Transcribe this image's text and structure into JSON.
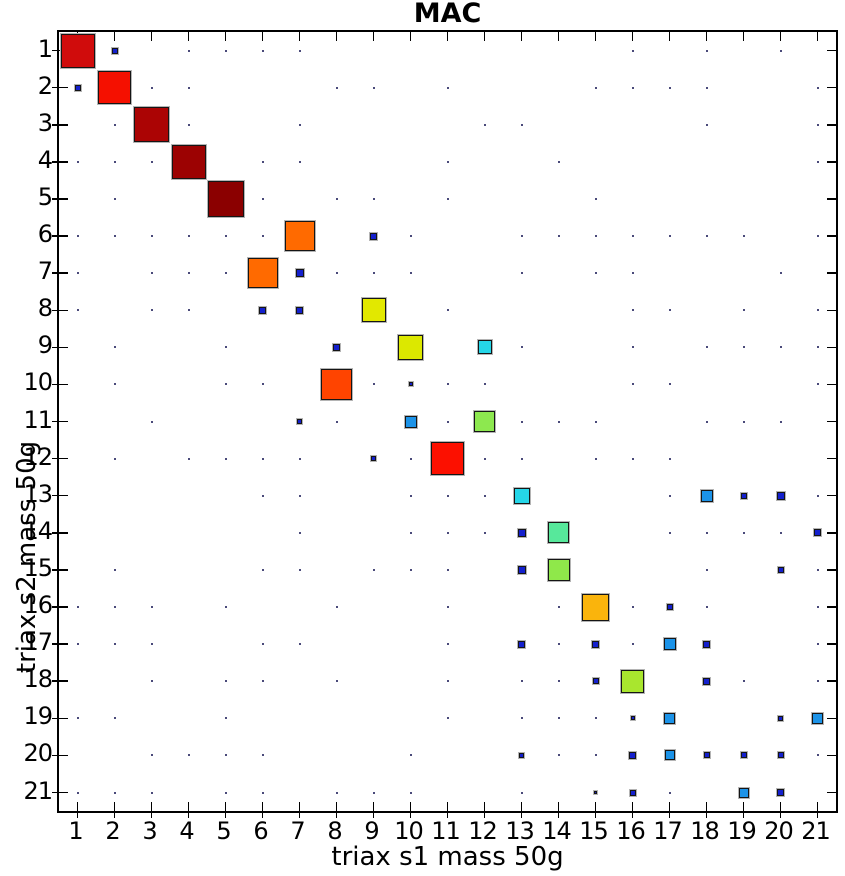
{
  "chart_data": {
    "type": "scatter",
    "subtype": "mac-matrix-bubble",
    "title": "MAC",
    "xlabel": "triax s1 mass 50g",
    "ylabel": "triax s2 mass 50g",
    "x_ticks": [
      1,
      2,
      3,
      4,
      5,
      6,
      7,
      8,
      9,
      10,
      11,
      12,
      13,
      14,
      15,
      16,
      17,
      18,
      19,
      20,
      21
    ],
    "y_ticks": [
      1,
      2,
      3,
      4,
      5,
      6,
      7,
      8,
      9,
      10,
      11,
      12,
      13,
      14,
      15,
      16,
      17,
      18,
      19,
      20,
      21
    ],
    "x_range": [
      0.5,
      21.5
    ],
    "y_range": [
      0.5,
      21.5
    ],
    "y_axis_direction": "reversed-top-to-bottom",
    "grid": false,
    "legend": "none",
    "encoding": "square size and jet color encode MAC value at (s1 mode, s2 mode)",
    "markers": [
      {
        "x": 1,
        "y": 1,
        "size": 34,
        "color": "#d00c0c"
      },
      {
        "x": 2,
        "y": 1,
        "size": 6,
        "color": "#1420cd"
      },
      {
        "x": 1,
        "y": 2,
        "size": 6,
        "color": "#1420cd"
      },
      {
        "x": 2,
        "y": 2,
        "size": 33,
        "color": "#f51000"
      },
      {
        "x": 3,
        "y": 3,
        "size": 35,
        "color": "#ab0404"
      },
      {
        "x": 4,
        "y": 4,
        "size": 34,
        "color": "#9c0202"
      },
      {
        "x": 5,
        "y": 5,
        "size": 36,
        "color": "#8b0000"
      },
      {
        "x": 7,
        "y": 6,
        "size": 30,
        "color": "#ff6a00"
      },
      {
        "x": 9,
        "y": 6,
        "size": 7,
        "color": "#1420cd"
      },
      {
        "x": 6,
        "y": 7,
        "size": 30,
        "color": "#ff6a00"
      },
      {
        "x": 7,
        "y": 7,
        "size": 8,
        "color": "#1420cd"
      },
      {
        "x": 6,
        "y": 8,
        "size": 7,
        "color": "#1420cd"
      },
      {
        "x": 7,
        "y": 8,
        "size": 7,
        "color": "#1420cd"
      },
      {
        "x": 9,
        "y": 8,
        "size": 24,
        "color": "#e2e800"
      },
      {
        "x": 8,
        "y": 9,
        "size": 7,
        "color": "#1420cd"
      },
      {
        "x": 10,
        "y": 9,
        "size": 25,
        "color": "#dce800"
      },
      {
        "x": 12,
        "y": 9,
        "size": 14,
        "color": "#25d6e8"
      },
      {
        "x": 8,
        "y": 10,
        "size": 31,
        "color": "#ff4400"
      },
      {
        "x": 10,
        "y": 10,
        "size": 4,
        "color": "#1420cd"
      },
      {
        "x": 7,
        "y": 11,
        "size": 5,
        "color": "#1420cd"
      },
      {
        "x": 10,
        "y": 11,
        "size": 12,
        "color": "#1c93e8"
      },
      {
        "x": 12,
        "y": 11,
        "size": 21,
        "color": "#8de84f"
      },
      {
        "x": 9,
        "y": 12,
        "size": 5,
        "color": "#1420cd"
      },
      {
        "x": 11,
        "y": 12,
        "size": 33,
        "color": "#fc1000"
      },
      {
        "x": 13,
        "y": 13,
        "size": 16,
        "color": "#25d6e8"
      },
      {
        "x": 18,
        "y": 13,
        "size": 12,
        "color": "#1c93e8"
      },
      {
        "x": 19,
        "y": 13,
        "size": 6,
        "color": "#1420cd"
      },
      {
        "x": 20,
        "y": 13,
        "size": 8,
        "color": "#1420cd"
      },
      {
        "x": 13,
        "y": 14,
        "size": 8,
        "color": "#1420cd"
      },
      {
        "x": 14,
        "y": 14,
        "size": 21,
        "color": "#57e89b"
      },
      {
        "x": 21,
        "y": 14,
        "size": 7,
        "color": "#1420cd"
      },
      {
        "x": 13,
        "y": 15,
        "size": 8,
        "color": "#1420cd"
      },
      {
        "x": 14,
        "y": 15,
        "size": 22,
        "color": "#8fe84a"
      },
      {
        "x": 20,
        "y": 15,
        "size": 6,
        "color": "#1420cd"
      },
      {
        "x": 15,
        "y": 16,
        "size": 27,
        "color": "#fab40c"
      },
      {
        "x": 17,
        "y": 16,
        "size": 6,
        "color": "#1420cd"
      },
      {
        "x": 13,
        "y": 17,
        "size": 7,
        "color": "#1420cd"
      },
      {
        "x": 15,
        "y": 17,
        "size": 7,
        "color": "#1420cd"
      },
      {
        "x": 17,
        "y": 17,
        "size": 12,
        "color": "#1c93e8"
      },
      {
        "x": 18,
        "y": 17,
        "size": 7,
        "color": "#1420cd"
      },
      {
        "x": 15,
        "y": 18,
        "size": 6,
        "color": "#1420cd"
      },
      {
        "x": 16,
        "y": 18,
        "size": 23,
        "color": "#a9e62e"
      },
      {
        "x": 18,
        "y": 18,
        "size": 7,
        "color": "#1420cd"
      },
      {
        "x": 16,
        "y": 19,
        "size": 4,
        "color": "#1420cd"
      },
      {
        "x": 17,
        "y": 19,
        "size": 11,
        "color": "#1c93e8"
      },
      {
        "x": 20,
        "y": 19,
        "size": 5,
        "color": "#1420cd"
      },
      {
        "x": 21,
        "y": 19,
        "size": 11,
        "color": "#1c93e8"
      },
      {
        "x": 13,
        "y": 20,
        "size": 5,
        "color": "#1420cd"
      },
      {
        "x": 16,
        "y": 20,
        "size": 7,
        "color": "#1420cd"
      },
      {
        "x": 17,
        "y": 20,
        "size": 10,
        "color": "#1c93e8"
      },
      {
        "x": 18,
        "y": 20,
        "size": 6,
        "color": "#1420cd"
      },
      {
        "x": 19,
        "y": 20,
        "size": 6,
        "color": "#1420cd"
      },
      {
        "x": 20,
        "y": 20,
        "size": 6,
        "color": "#1420cd"
      },
      {
        "x": 15,
        "y": 21,
        "size": 3,
        "color": "#1420cd"
      },
      {
        "x": 16,
        "y": 21,
        "size": 6,
        "color": "#1420cd"
      },
      {
        "x": 19,
        "y": 21,
        "size": 10,
        "color": "#1c93e8"
      },
      {
        "x": 20,
        "y": 21,
        "size": 7,
        "color": "#1420cd"
      }
    ],
    "near_zero_dots": [
      {
        "row": 1,
        "cols": [
          4,
          5,
          6,
          7,
          16,
          18,
          20
        ]
      },
      {
        "row": 2,
        "cols": [
          3,
          4,
          8,
          9,
          11,
          15,
          16,
          17,
          18,
          21
        ]
      },
      {
        "row": 3,
        "cols": [
          2,
          4,
          7,
          12,
          13,
          18,
          21
        ]
      },
      {
        "row": 4,
        "cols": [
          1,
          2,
          3,
          6,
          7,
          11,
          14,
          21
        ]
      },
      {
        "row": 5,
        "cols": [
          2,
          6,
          8,
          9,
          11,
          15
        ]
      },
      {
        "row": 6,
        "cols": [
          1,
          2,
          3,
          4,
          5,
          6,
          10,
          13,
          14,
          15,
          16,
          17,
          18,
          19,
          21
        ]
      },
      {
        "row": 7,
        "cols": [
          1,
          3,
          4,
          5,
          8,
          9,
          10,
          13,
          15,
          16,
          20
        ]
      },
      {
        "row": 8,
        "cols": [
          1,
          3,
          4,
          11,
          16,
          17,
          19,
          21
        ]
      },
      {
        "row": 9,
        "cols": [
          2,
          5,
          13,
          16,
          18,
          19,
          20,
          21
        ]
      },
      {
        "row": 10,
        "cols": [
          2,
          5,
          6,
          9,
          11,
          12,
          16,
          17,
          21
        ]
      },
      {
        "row": 11,
        "cols": [
          3,
          8,
          11,
          13,
          14,
          15,
          18,
          19,
          20
        ]
      },
      {
        "row": 12,
        "cols": [
          2,
          4,
          5,
          6,
          7,
          10,
          12,
          13,
          15,
          16,
          17
        ]
      },
      {
        "row": 13,
        "cols": [
          6,
          7,
          10,
          11,
          12,
          17,
          21
        ]
      },
      {
        "row": 14,
        "cols": [
          7,
          10,
          11,
          12,
          17,
          18,
          19,
          20
        ]
      },
      {
        "row": 15,
        "cols": [
          2,
          6,
          7,
          9,
          10,
          11,
          18,
          21
        ]
      },
      {
        "row": 16,
        "cols": [
          1,
          2,
          3,
          5,
          8,
          11,
          14,
          16,
          18,
          21
        ]
      },
      {
        "row": 17,
        "cols": [
          1,
          2,
          3,
          6,
          7,
          11,
          14,
          16,
          21
        ]
      },
      {
        "row": 18,
        "cols": [
          3,
          5,
          6,
          8,
          11,
          13,
          14,
          19,
          21
        ]
      },
      {
        "row": 19,
        "cols": [
          1,
          2,
          5,
          11,
          13,
          14,
          15
        ]
      },
      {
        "row": 20,
        "cols": [
          3,
          4,
          5,
          6,
          10,
          14,
          15,
          21
        ]
      },
      {
        "row": 21,
        "cols": [
          1,
          2,
          3,
          5,
          6,
          8,
          9,
          10,
          13,
          15,
          17
        ]
      }
    ],
    "axes_style": {
      "spine_color": "#000000",
      "tick_direction": "in-and-out",
      "marker_edge_color": "#151515",
      "dot_color": "#4a4a7a"
    }
  }
}
